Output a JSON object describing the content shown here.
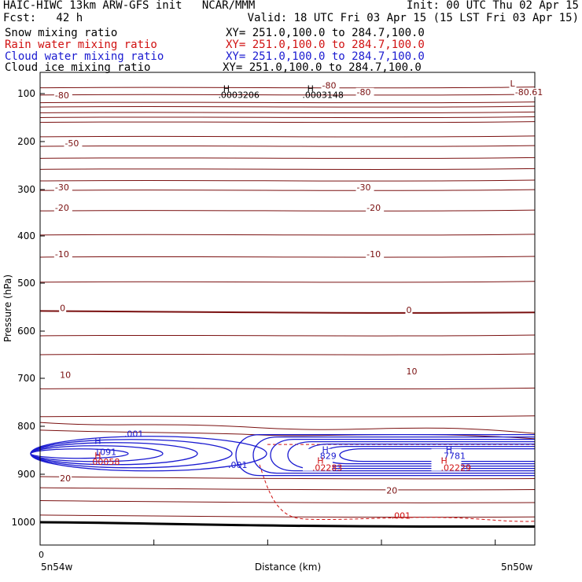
{
  "header": {
    "title": "HAIC-HIWC 13km ARW-GFS init   NCAR/MMM",
    "init": "Init: 00 UTC Thu 02 Apr 15",
    "fcst": "Fcst:   42 h",
    "valid": "Valid: 18 UTC Fri 03 Apr 15 (15 LST Fri 03 Apr 15)"
  },
  "fields": [
    {
      "name": "Snow mixing ratio",
      "xy": "XY= 251.0,100.0 to 284.7,100.0",
      "color": "#000000"
    },
    {
      "name": "Rain water mixing ratio",
      "xy": "XY= 251.0,100.0 to 284.7,100.0",
      "color": "#d01010"
    },
    {
      "name": "Cloud water mixing ratio",
      "xy": "XY= 251.0,100.0 to 284.7,100.0",
      "color": "#1a1ad0"
    },
    {
      "name": "Cloud ice mixing ratio",
      "xy": "XY= 251.0,100.0 to 284.7,100.0",
      "color": "#000000"
    }
  ],
  "colors": {
    "temperature": "#7a1010",
    "cloud_water": "#1a1ad0",
    "rain": "#d01010",
    "ice": "#000000"
  },
  "chart_data": {
    "type": "contour",
    "ylabel": "Pressure (hPa)",
    "xlabel": "Distance (km)",
    "y_axis": {
      "ticks": [
        100,
        200,
        300,
        400,
        500,
        600,
        700,
        800,
        900,
        1000
      ],
      "range": [
        1050,
        50
      ]
    },
    "x_axis": {
      "ticks": [
        "0"
      ],
      "left_label": "5n54w",
      "right_label": "5n50w"
    },
    "temperature_labels": [
      {
        "text": "-80",
        "x": 0.03,
        "p": 110
      },
      {
        "text": "-80",
        "x": 0.57,
        "p": 89
      },
      {
        "text": "-80",
        "x": 0.64,
        "p": 103
      },
      {
        "text": "-80.61",
        "x": 0.96,
        "p": 103
      },
      {
        "text": "L",
        "x": 0.95,
        "p": 85
      },
      {
        "text": "-50",
        "x": 0.05,
        "p": 210
      },
      {
        "text": "-30",
        "x": 0.03,
        "p": 302
      },
      {
        "text": "-30",
        "x": 0.64,
        "p": 302
      },
      {
        "text": "-20",
        "x": 0.03,
        "p": 346
      },
      {
        "text": "-20",
        "x": 0.66,
        "p": 346
      },
      {
        "text": "-10",
        "x": 0.03,
        "p": 445
      },
      {
        "text": "-10",
        "x": 0.66,
        "p": 445
      },
      {
        "text": "0",
        "x": 0.04,
        "p": 558
      },
      {
        "text": "0",
        "x": 0.74,
        "p": 562
      },
      {
        "text": "10",
        "x": 0.04,
        "p": 699
      },
      {
        "text": "10",
        "x": 0.74,
        "p": 692
      },
      {
        "text": "20",
        "x": 0.04,
        "p": 915
      },
      {
        "text": "20",
        "x": 0.7,
        "p": 940
      }
    ],
    "ice_maxima": [
      {
        "text": "H",
        "x": 0.37,
        "p": 96
      },
      {
        "text": ".0003206",
        "x": 0.36,
        "p": 109
      },
      {
        "text": "H",
        "x": 0.54,
        "p": 96
      },
      {
        "text": ".0003148",
        "x": 0.53,
        "p": 109
      }
    ],
    "cloud_water_labels": [
      {
        "text": ".001",
        "x": 0.17,
        "p": 822
      },
      {
        "text": "H",
        "x": 0.11,
        "p": 837
      },
      {
        "text": "1091",
        "x": 0.11,
        "p": 860
      },
      {
        "text": ".001",
        "x": 0.38,
        "p": 887
      },
      {
        "text": "H",
        "x": 0.57,
        "p": 855
      },
      {
        "text": ".829",
        "x": 0.56,
        "p": 868
      },
      {
        "text": "H",
        "x": 0.82,
        "p": 855
      },
      {
        "text": ".7781",
        "x": 0.81,
        "p": 868
      }
    ],
    "rain_labels": [
      {
        "text": "H",
        "x": 0.11,
        "p": 867
      },
      {
        "text": ".00058",
        "x": 0.1,
        "p": 880
      },
      {
        "text": "H",
        "x": 0.56,
        "p": 878
      },
      {
        "text": ".02283",
        "x": 0.55,
        "p": 893
      },
      {
        "text": "H",
        "x": 0.81,
        "p": 878
      },
      {
        "text": ".02229",
        "x": 0.81,
        "p": 893
      },
      {
        "text": ".001",
        "x": 0.71,
        "p": 993
      }
    ]
  }
}
